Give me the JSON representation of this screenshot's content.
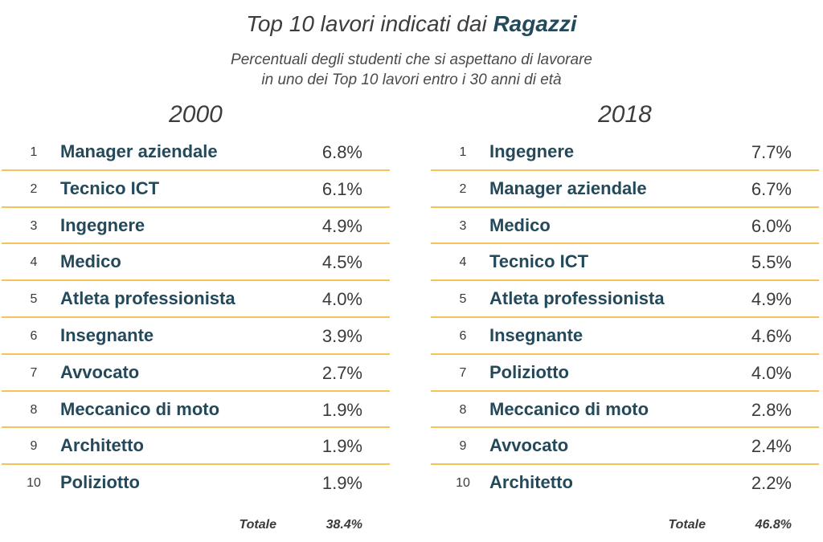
{
  "header": {
    "title_prefix": "Top 10 lavori indicati dai ",
    "title_accent": "Ragazzi",
    "subtitle_line1": "Percentuali degli studenti che si aspettano di lavorare",
    "subtitle_line2": "in uno dei Top 10 lavori entro i 30 anni di età"
  },
  "colors": {
    "accent": "#24495a",
    "separator": "#f5c35c",
    "text": "#3a3a3a"
  },
  "chart_data": [
    {
      "type": "table",
      "title": "2000",
      "columns": [
        "rank",
        "job",
        "percent"
      ],
      "rows": [
        {
          "rank": "1",
          "job": "Manager aziendale",
          "percent": "6.8%"
        },
        {
          "rank": "2",
          "job": "Tecnico ICT",
          "percent": "6.1%"
        },
        {
          "rank": "3",
          "job": "Ingegnere",
          "percent": "4.9%"
        },
        {
          "rank": "4",
          "job": "Medico",
          "percent": "4.5%"
        },
        {
          "rank": "5",
          "job": "Atleta professionista",
          "percent": "4.0%"
        },
        {
          "rank": "6",
          "job": "Insegnante",
          "percent": "3.9%"
        },
        {
          "rank": "7",
          "job": "Avvocato",
          "percent": "2.7%"
        },
        {
          "rank": "8",
          "job": "Meccanico di moto",
          "percent": "1.9%"
        },
        {
          "rank": "9",
          "job": "Architetto",
          "percent": "1.9%"
        },
        {
          "rank": "10",
          "job": "Poliziotto",
          "percent": "1.9%"
        }
      ],
      "total_label": "Totale",
      "total_value": "38.4%"
    },
    {
      "type": "table",
      "title": "2018",
      "columns": [
        "rank",
        "job",
        "percent"
      ],
      "rows": [
        {
          "rank": "1",
          "job": "Ingegnere",
          "percent": "7.7%"
        },
        {
          "rank": "2",
          "job": "Manager aziendale",
          "percent": "6.7%"
        },
        {
          "rank": "3",
          "job": "Medico",
          "percent": "6.0%"
        },
        {
          "rank": "4",
          "job": "Tecnico ICT",
          "percent": "5.5%"
        },
        {
          "rank": "5",
          "job": "Atleta professionista",
          "percent": "4.9%"
        },
        {
          "rank": "6",
          "job": "Insegnante",
          "percent": "4.6%"
        },
        {
          "rank": "7",
          "job": "Poliziotto",
          "percent": "4.0%"
        },
        {
          "rank": "8",
          "job": "Meccanico di moto",
          "percent": "2.8%"
        },
        {
          "rank": "9",
          "job": "Avvocato",
          "percent": "2.4%"
        },
        {
          "rank": "10",
          "job": "Architetto",
          "percent": "2.2%"
        }
      ],
      "total_label": "Totale",
      "total_value": "46.8%"
    }
  ]
}
